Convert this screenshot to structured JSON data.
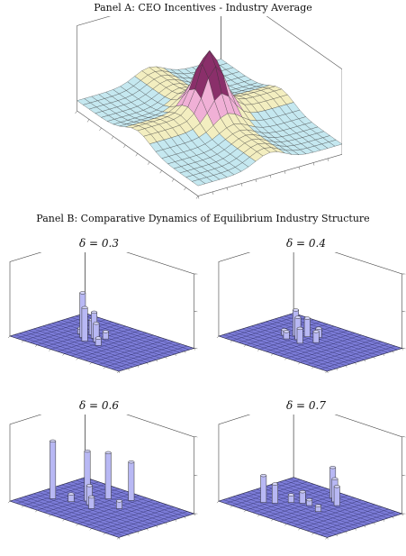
{
  "panel_a": {
    "title": "Panel A: CEO Incentives - Industry Average"
  },
  "panel_b": {
    "title": "Panel B: Comparative Dynamics of Equilibrium Industry Structure"
  },
  "chart_data": [
    {
      "type": "surface",
      "panel": "A",
      "title": "Panel A: CEO Incentives - Industry Average",
      "zlim": [
        0,
        1
      ],
      "z_ticks": [
        "0.25",
        "0.5",
        "0.75",
        "1"
      ],
      "grid": true,
      "colormap": [
        "#c5e8f0",
        "#f3eec0",
        "#f0b0d6",
        "#8a2f6a"
      ],
      "description_of_shape": "ridge along two axes, peak at center"
    },
    {
      "type": "bar3d",
      "panel": "B",
      "label": "δ = 0.3",
      "zlim": [
        0,
        0.2
      ],
      "z_ticks": [
        "0",
        "0.1",
        "0.2"
      ],
      "bar_color": "#b8b8f4",
      "bars": [
        {
          "i": 5,
          "j": 7,
          "h": 0.12
        },
        {
          "i": 6,
          "j": 6,
          "h": 0.09
        },
        {
          "i": 6,
          "j": 8,
          "h": 0.07
        },
        {
          "i": 7,
          "j": 7,
          "h": 0.05
        },
        {
          "i": 5,
          "j": 9,
          "h": 0.04
        },
        {
          "i": 8,
          "j": 6,
          "h": 0.02
        },
        {
          "i": 4,
          "j": 8,
          "h": 0.015
        },
        {
          "i": 7,
          "j": 9,
          "h": 0.02
        }
      ]
    },
    {
      "type": "bar3d",
      "panel": "B",
      "label": "δ = 0.4",
      "zlim": [
        0,
        0.2
      ],
      "z_ticks": [
        "0",
        "0.1",
        "0.2"
      ],
      "bar_color": "#b8b8f4",
      "bars": [
        {
          "i": 6,
          "j": 7,
          "h": 0.06
        },
        {
          "i": 5,
          "j": 8,
          "h": 0.07
        },
        {
          "i": 6,
          "j": 9,
          "h": 0.05
        },
        {
          "i": 7,
          "j": 6,
          "h": 0.04
        },
        {
          "i": 8,
          "j": 8,
          "h": 0.03
        },
        {
          "i": 5,
          "j": 6,
          "h": 0.02
        },
        {
          "i": 7,
          "j": 10,
          "h": 0.025
        },
        {
          "i": 4,
          "j": 7,
          "h": 0.015
        }
      ]
    },
    {
      "type": "bar3d",
      "panel": "B",
      "label": "δ = 0.6",
      "zlim": [
        0,
        0.2
      ],
      "z_ticks": [
        "0",
        "0.1",
        "0.2"
      ],
      "bar_color": "#b8b8f4",
      "bars": [
        {
          "i": 2,
          "j": 5,
          "h": 0.15
        },
        {
          "i": 5,
          "j": 8,
          "h": 0.13
        },
        {
          "i": 6,
          "j": 11,
          "h": 0.12
        },
        {
          "i": 8,
          "j": 13,
          "h": 0.1
        },
        {
          "i": 6,
          "j": 7,
          "h": 0.05
        },
        {
          "i": 7,
          "j": 6,
          "h": 0.03
        },
        {
          "i": 4,
          "j": 6,
          "h": 0.02
        },
        {
          "i": 9,
          "j": 9,
          "h": 0.02
        }
      ]
    },
    {
      "type": "bar3d",
      "panel": "B",
      "label": "δ = 0.7",
      "zlim": [
        0,
        0.2
      ],
      "z_ticks": [
        "0",
        "0.1",
        "0.2"
      ],
      "bar_color": "#b8b8f4",
      "bars": [
        {
          "i": 3,
          "j": 4,
          "h": 0.07
        },
        {
          "i": 4,
          "j": 5,
          "h": 0.05
        },
        {
          "i": 7,
          "j": 13,
          "h": 0.08
        },
        {
          "i": 8,
          "j": 12,
          "h": 0.06
        },
        {
          "i": 9,
          "j": 11,
          "h": 0.05
        },
        {
          "i": 6,
          "j": 8,
          "h": 0.03
        },
        {
          "i": 5,
          "j": 7,
          "h": 0.02
        },
        {
          "i": 7,
          "j": 8,
          "h": 0.015
        },
        {
          "i": 9,
          "j": 7,
          "h": 0.015
        }
      ]
    }
  ],
  "deltas": [
    "δ = 0.3",
    "δ = 0.4",
    "δ = 0.6",
    "δ = 0.7"
  ]
}
